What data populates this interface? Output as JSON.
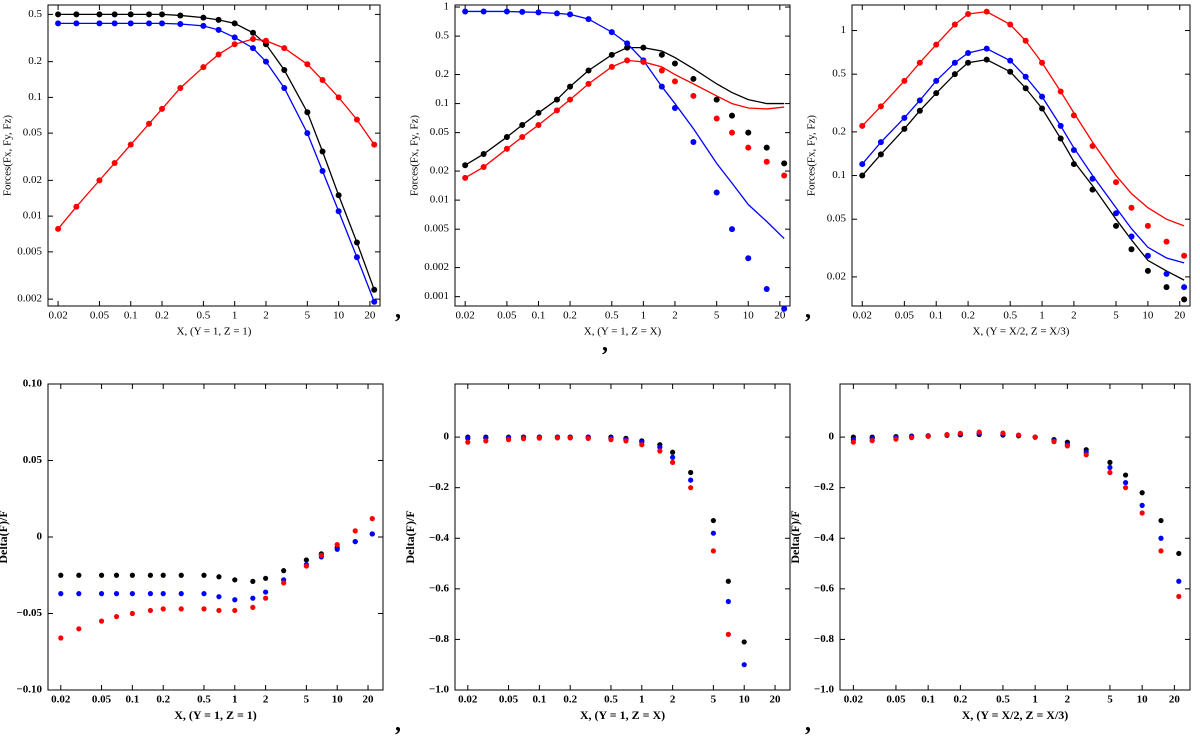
{
  "chart_data": [
    {
      "type": "scatter",
      "xscale": "log",
      "yscale": "log",
      "ylabel": "Forces(Fx, Fy, Fz)",
      "xlabel": "X, (Y = 1, Z = 1)",
      "xlim": [
        0.016,
        25
      ],
      "ylim": [
        0.00175,
        0.6
      ],
      "xticks": [
        0.02,
        0.05,
        0.1,
        0.2,
        0.5,
        1,
        2,
        5,
        10,
        20
      ],
      "yticks": [
        0.002,
        0.005,
        0.01,
        0.02,
        0.05,
        0.1,
        0.2,
        0.5
      ],
      "x": [
        0.02,
        0.03,
        0.05,
        0.07,
        0.1,
        0.15,
        0.2,
        0.3,
        0.5,
        0.7,
        1,
        1.5,
        2,
        3,
        5,
        7,
        10,
        15,
        22
      ],
      "series": [
        {
          "color": "#000000",
          "style": "line",
          "values": [
            0.5,
            0.5,
            0.5,
            0.5,
            0.5,
            0.5,
            0.5,
            0.49,
            0.47,
            0.45,
            0.42,
            0.35,
            0.28,
            0.17,
            0.075,
            0.035,
            0.015,
            0.006,
            0.0024
          ]
        },
        {
          "color": "#0000ff",
          "style": "line",
          "values": [
            0.42,
            0.42,
            0.42,
            0.42,
            0.42,
            0.42,
            0.42,
            0.415,
            0.4,
            0.37,
            0.32,
            0.26,
            0.2,
            0.12,
            0.05,
            0.024,
            0.011,
            0.0045,
            0.0019
          ]
        },
        {
          "color": "#ff0000",
          "style": "line",
          "values": [
            0.0078,
            0.012,
            0.02,
            0.028,
            0.04,
            0.06,
            0.08,
            0.12,
            0.18,
            0.23,
            0.28,
            0.31,
            0.3,
            0.26,
            0.19,
            0.14,
            0.1,
            0.065,
            0.04
          ]
        },
        {
          "color": "#000000",
          "style": "markers",
          "values": [
            0.5,
            0.5,
            0.5,
            0.5,
            0.5,
            0.5,
            0.5,
            0.49,
            0.47,
            0.45,
            0.42,
            0.35,
            0.28,
            0.17,
            0.075,
            0.035,
            0.015,
            0.006,
            0.0024
          ]
        },
        {
          "color": "#0000ff",
          "style": "markers",
          "values": [
            0.42,
            0.42,
            0.42,
            0.42,
            0.42,
            0.42,
            0.42,
            0.415,
            0.4,
            0.37,
            0.32,
            0.26,
            0.2,
            0.12,
            0.05,
            0.024,
            0.011,
            0.0045,
            0.0019
          ]
        },
        {
          "color": "#ff0000",
          "style": "markers",
          "values": [
            0.0078,
            0.012,
            0.02,
            0.028,
            0.04,
            0.06,
            0.08,
            0.12,
            0.18,
            0.23,
            0.28,
            0.31,
            0.3,
            0.26,
            0.19,
            0.14,
            0.1,
            0.065,
            0.04
          ]
        }
      ]
    },
    {
      "type": "scatter",
      "xscale": "log",
      "yscale": "log",
      "ylabel": "Forces(Fx, Fy, Fz)",
      "xlabel": "X, (Y = 1, Z = X)",
      "xlim": [
        0.016,
        25
      ],
      "ylim": [
        0.0008,
        1.05
      ],
      "xticks": [
        0.02,
        0.05,
        0.1,
        0.2,
        0.5,
        1,
        2,
        5,
        10,
        20
      ],
      "yticks": [
        0.001,
        0.002,
        0.005,
        0.01,
        0.02,
        0.05,
        0.1,
        0.2,
        0.5,
        1
      ],
      "x": [
        0.02,
        0.03,
        0.05,
        0.07,
        0.1,
        0.15,
        0.2,
        0.3,
        0.5,
        0.7,
        1,
        1.5,
        2,
        3,
        5,
        7,
        10,
        15,
        22
      ],
      "series": [
        {
          "color": "#000000",
          "style": "line",
          "values": [
            0.023,
            0.03,
            0.045,
            0.06,
            0.08,
            0.11,
            0.15,
            0.22,
            0.32,
            0.38,
            0.38,
            0.35,
            0.3,
            0.23,
            0.16,
            0.13,
            0.11,
            0.1,
            0.1
          ]
        },
        {
          "color": "#0000ff",
          "style": "line",
          "values": [
            0.9,
            0.9,
            0.9,
            0.89,
            0.88,
            0.86,
            0.84,
            0.75,
            0.55,
            0.42,
            0.28,
            0.15,
            0.1,
            0.055,
            0.024,
            0.015,
            0.009,
            0.006,
            0.004
          ]
        },
        {
          "color": "#ff0000",
          "style": "line",
          "values": [
            0.017,
            0.022,
            0.034,
            0.045,
            0.06,
            0.085,
            0.11,
            0.16,
            0.24,
            0.28,
            0.27,
            0.24,
            0.2,
            0.16,
            0.12,
            0.1,
            0.09,
            0.088,
            0.092
          ]
        },
        {
          "color": "#000000",
          "style": "markers",
          "values": [
            0.023,
            0.03,
            0.045,
            0.06,
            0.08,
            0.11,
            0.15,
            0.22,
            0.32,
            0.38,
            0.38,
            0.32,
            0.26,
            0.18,
            0.11,
            0.075,
            0.05,
            0.035,
            0.024
          ]
        },
        {
          "color": "#0000ff",
          "style": "markers",
          "values": [
            0.9,
            0.9,
            0.9,
            0.89,
            0.88,
            0.86,
            0.84,
            0.75,
            0.55,
            0.42,
            0.28,
            0.15,
            0.09,
            0.04,
            0.012,
            0.005,
            0.0025,
            0.0012,
            0.00075
          ]
        },
        {
          "color": "#ff0000",
          "style": "markers",
          "values": [
            0.017,
            0.022,
            0.034,
            0.045,
            0.06,
            0.085,
            0.11,
            0.16,
            0.24,
            0.28,
            0.27,
            0.22,
            0.17,
            0.12,
            0.07,
            0.05,
            0.035,
            0.025,
            0.018
          ]
        }
      ]
    },
    {
      "type": "scatter",
      "xscale": "log",
      "yscale": "log",
      "ylabel": "Forces(Fx, Fy, Fz)",
      "xlabel": "X, (Y = X/2, Z = X/3)",
      "xlim": [
        0.016,
        25
      ],
      "ylim": [
        0.0126,
        1.5
      ],
      "xticks": [
        0.02,
        0.05,
        0.1,
        0.2,
        0.5,
        1,
        2,
        5,
        10,
        20
      ],
      "yticks": [
        0.02,
        0.05,
        0.1,
        0.2,
        0.5,
        1
      ],
      "x": [
        0.02,
        0.03,
        0.05,
        0.07,
        0.1,
        0.15,
        0.2,
        0.3,
        0.5,
        0.7,
        1,
        1.5,
        2,
        3,
        5,
        7,
        10,
        15,
        22
      ],
      "series": [
        {
          "color": "#000000",
          "style": "line",
          "values": [
            0.1,
            0.14,
            0.21,
            0.28,
            0.37,
            0.5,
            0.6,
            0.63,
            0.52,
            0.4,
            0.29,
            0.18,
            0.125,
            0.085,
            0.05,
            0.036,
            0.026,
            0.022,
            0.019
          ]
        },
        {
          "color": "#0000ff",
          "style": "line",
          "values": [
            0.12,
            0.17,
            0.25,
            0.33,
            0.45,
            0.6,
            0.7,
            0.75,
            0.62,
            0.48,
            0.35,
            0.22,
            0.155,
            0.1,
            0.06,
            0.043,
            0.032,
            0.027,
            0.025
          ]
        },
        {
          "color": "#ff0000",
          "style": "line",
          "values": [
            0.22,
            0.3,
            0.45,
            0.6,
            0.8,
            1.1,
            1.3,
            1.35,
            1.1,
            0.85,
            0.6,
            0.38,
            0.27,
            0.17,
            0.1,
            0.075,
            0.06,
            0.05,
            0.045
          ]
        },
        {
          "color": "#000000",
          "style": "markers",
          "values": [
            0.1,
            0.14,
            0.21,
            0.28,
            0.37,
            0.5,
            0.6,
            0.63,
            0.52,
            0.4,
            0.29,
            0.18,
            0.12,
            0.08,
            0.045,
            0.031,
            0.022,
            0.017,
            0.014
          ]
        },
        {
          "color": "#0000ff",
          "style": "markers",
          "values": [
            0.12,
            0.17,
            0.25,
            0.33,
            0.45,
            0.6,
            0.7,
            0.75,
            0.62,
            0.48,
            0.35,
            0.22,
            0.15,
            0.095,
            0.055,
            0.038,
            0.028,
            0.021,
            0.017
          ]
        },
        {
          "color": "#ff0000",
          "style": "markers",
          "values": [
            0.22,
            0.3,
            0.45,
            0.6,
            0.8,
            1.1,
            1.3,
            1.35,
            1.1,
            0.85,
            0.6,
            0.38,
            0.26,
            0.16,
            0.09,
            0.06,
            0.045,
            0.035,
            0.028
          ]
        }
      ]
    },
    {
      "type": "scatter",
      "xscale": "log",
      "ylabel": "Delta(F)/F",
      "xlabel": "X, (Y = 1, Z = 1)",
      "xlim": [
        0.015,
        28
      ],
      "ylim": [
        -0.1,
        0.1
      ],
      "xticks": [
        0.02,
        0.05,
        0.1,
        0.2,
        0.5,
        1,
        2,
        5,
        10,
        20
      ],
      "yticks": [
        {
          "value": -0.1,
          "label": "−0.10"
        },
        {
          "value": -0.05,
          "label": "−0.05"
        },
        0,
        0.05,
        {
          "value": 0.1,
          "label": "0.10"
        }
      ],
      "x": [
        0.02,
        0.03,
        0.05,
        0.07,
        0.1,
        0.15,
        0.2,
        0.3,
        0.5,
        0.7,
        1,
        1.5,
        2,
        3,
        5,
        7,
        10,
        15,
        22
      ],
      "series": [
        {
          "color": "#000000",
          "style": "markers",
          "values": [
            -0.025,
            -0.025,
            -0.025,
            -0.025,
            -0.025,
            -0.025,
            -0.025,
            -0.025,
            -0.025,
            -0.026,
            -0.028,
            -0.029,
            -0.027,
            -0.022,
            -0.015,
            -0.011,
            -0.007,
            -0.003,
            0.002
          ]
        },
        {
          "color": "#0000ff",
          "style": "markers",
          "values": [
            -0.037,
            -0.037,
            -0.037,
            -0.037,
            -0.037,
            -0.037,
            -0.037,
            -0.037,
            -0.037,
            -0.039,
            -0.041,
            -0.04,
            -0.036,
            -0.028,
            -0.018,
            -0.013,
            -0.008,
            -0.003,
            0.002
          ]
        },
        {
          "color": "#ff0000",
          "style": "markers",
          "values": [
            -0.066,
            -0.06,
            -0.055,
            -0.052,
            -0.05,
            -0.048,
            -0.047,
            -0.047,
            -0.047,
            -0.048,
            -0.048,
            -0.046,
            -0.04,
            -0.03,
            -0.019,
            -0.012,
            -0.005,
            0.004,
            0.012
          ]
        }
      ]
    },
    {
      "type": "scatter",
      "xscale": "log",
      "ylabel": "Delta(F)/F",
      "xlabel": "X, (Y = 1, Z = X)",
      "xlim": [
        0.015,
        28
      ],
      "ylim": [
        -1.0,
        0.21
      ],
      "xticks": [
        0.02,
        0.05,
        0.1,
        0.2,
        0.5,
        1,
        2,
        5,
        10,
        20
      ],
      "yticks": [
        {
          "value": -1.0,
          "label": "−1.0"
        },
        {
          "value": -0.8,
          "label": "−0.8"
        },
        {
          "value": -0.6,
          "label": "−0.6"
        },
        {
          "value": -0.4,
          "label": "−0.4"
        },
        {
          "value": -0.2,
          "label": "−0.2"
        },
        0
      ],
      "x": [
        0.02,
        0.03,
        0.05,
        0.07,
        0.1,
        0.15,
        0.2,
        0.3,
        0.5,
        0.7,
        1,
        1.5,
        2,
        3,
        5,
        7,
        10,
        15,
        22
      ],
      "series": [
        {
          "color": "#000000",
          "style": "markers",
          "values": [
            0,
            0,
            0,
            0,
            0,
            0,
            0,
            0,
            0,
            -0.005,
            -0.015,
            -0.03,
            -0.06,
            -0.14,
            -0.33,
            -0.57,
            -0.81,
            null,
            null
          ]
        },
        {
          "color": "#0000ff",
          "style": "markers",
          "values": [
            -0.005,
            -0.003,
            -0.002,
            0,
            0,
            0,
            0,
            0,
            -0.005,
            -0.01,
            -0.02,
            -0.04,
            -0.08,
            -0.17,
            -0.38,
            -0.65,
            -0.9,
            null,
            null
          ]
        },
        {
          "color": "#ff0000",
          "style": "markers",
          "values": [
            -0.02,
            -0.015,
            -0.01,
            -0.006,
            -0.004,
            -0.003,
            -0.003,
            -0.005,
            -0.01,
            -0.015,
            -0.03,
            -0.055,
            -0.1,
            -0.2,
            -0.45,
            -0.78,
            null,
            null,
            null
          ]
        }
      ]
    },
    {
      "type": "scatter",
      "xscale": "log",
      "ylabel": "Delta(F)/F",
      "xlabel": "X, (Y = X/2, Z = X/3)",
      "xlim": [
        0.015,
        28
      ],
      "ylim": [
        -1.0,
        0.21
      ],
      "xticks": [
        0.02,
        0.05,
        0.1,
        0.2,
        0.5,
        1,
        2,
        5,
        10,
        20
      ],
      "yticks": [
        {
          "value": -1.0,
          "label": "−1.0"
        },
        {
          "value": -0.8,
          "label": "−0.8"
        },
        {
          "value": -0.6,
          "label": "−0.6"
        },
        {
          "value": -0.4,
          "label": "−0.4"
        },
        {
          "value": -0.2,
          "label": "−0.2"
        },
        0
      ],
      "x": [
        0.02,
        0.03,
        0.05,
        0.07,
        0.1,
        0.15,
        0.2,
        0.3,
        0.5,
        0.7,
        1,
        1.5,
        2,
        3,
        5,
        7,
        10,
        15,
        22
      ],
      "series": [
        {
          "color": "#000000",
          "style": "markers",
          "values": [
            0,
            0,
            0.002,
            0.004,
            0.005,
            0.007,
            0.009,
            0.01,
            0.008,
            0.005,
            0,
            -0.01,
            -0.02,
            -0.05,
            -0.1,
            -0.15,
            -0.22,
            -0.33,
            -0.46
          ]
        },
        {
          "color": "#0000ff",
          "style": "markers",
          "values": [
            -0.01,
            -0.006,
            -0.002,
            0.002,
            0.005,
            0.009,
            0.012,
            0.015,
            0.012,
            0.007,
            0,
            -0.015,
            -0.03,
            -0.06,
            -0.12,
            -0.18,
            -0.27,
            -0.4,
            -0.57
          ]
        },
        {
          "color": "#ff0000",
          "style": "markers",
          "values": [
            -0.02,
            -0.014,
            -0.008,
            -0.002,
            0.003,
            0.01,
            0.015,
            0.02,
            0.016,
            0.008,
            0,
            -0.018,
            -0.035,
            -0.07,
            -0.14,
            -0.2,
            -0.3,
            -0.45,
            -0.63
          ]
        }
      ]
    }
  ],
  "separators": [
    ",",
    ",",
    ",",
    ",",
    ","
  ]
}
